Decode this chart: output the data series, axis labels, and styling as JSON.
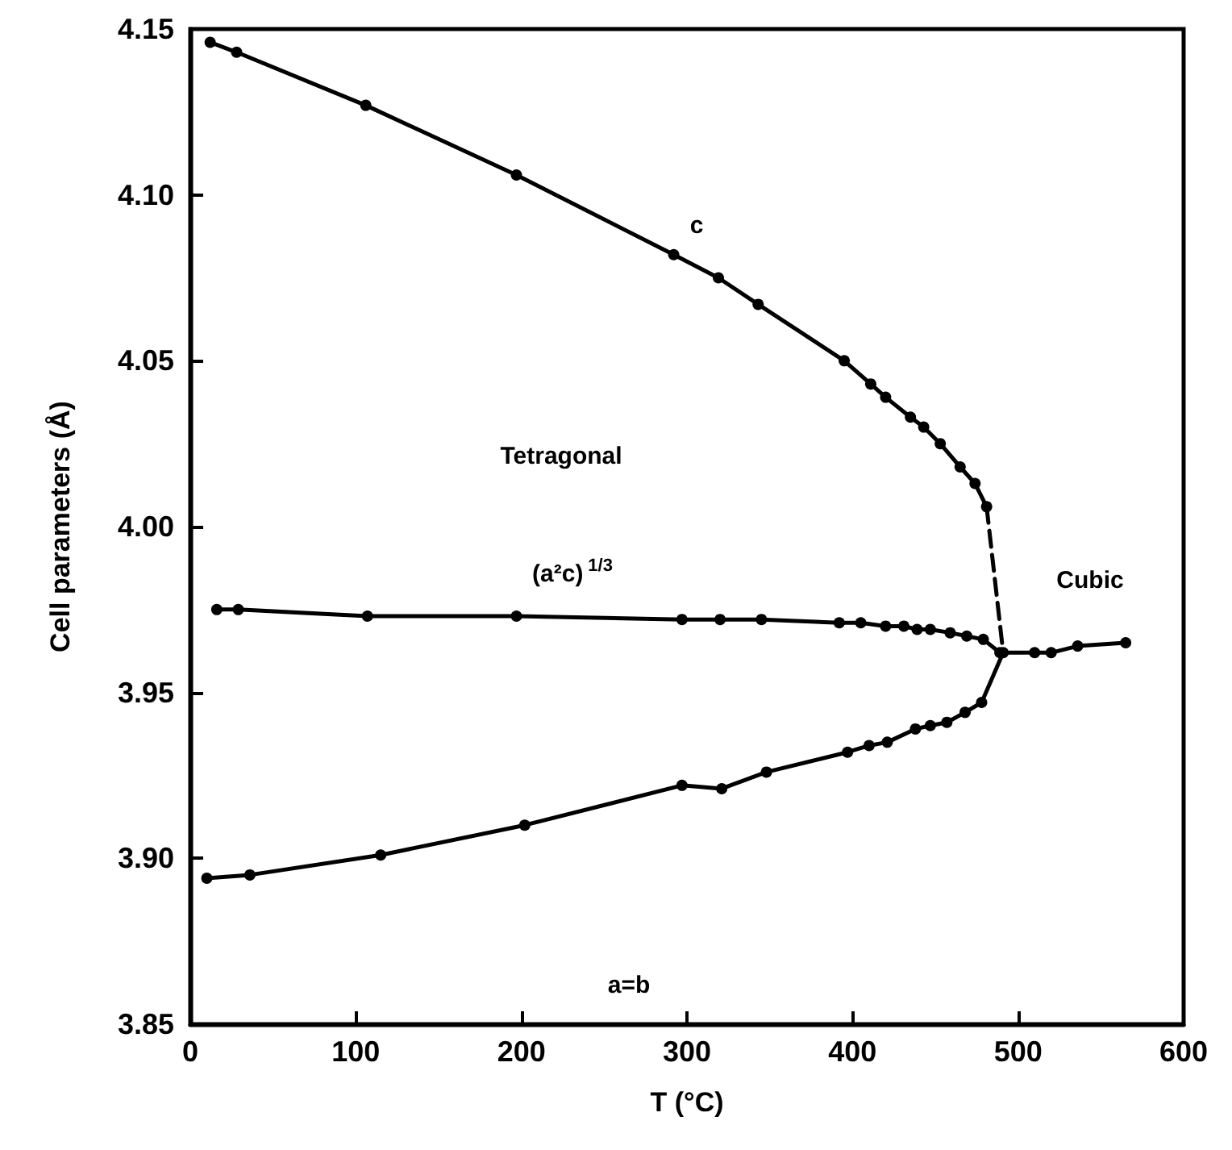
{
  "chart_data": {
    "type": "line",
    "xlabel": "T (°C)",
    "ylabel": "Cell parameters (Å)",
    "xlim": [
      0,
      600
    ],
    "xticks": [
      0,
      100,
      200,
      300,
      400,
      500,
      600
    ],
    "ylim": [
      3.85,
      4.15
    ],
    "yticks": [
      {
        "value": 3.85,
        "label": "3.85"
      },
      {
        "value": 3.9,
        "label": "3.90"
      },
      {
        "value": 3.95,
        "label": "3.95"
      },
      {
        "value": 4.0,
        "label": "4.00"
      },
      {
        "value": 4.05,
        "label": "4.05"
      },
      {
        "value": 4.1,
        "label": "4.10"
      },
      {
        "value": 4.15,
        "label": "4.15"
      }
    ],
    "grid": false,
    "marker": "circle",
    "line_style": "solid",
    "series": [
      {
        "color": "#000000",
        "x": [
          12,
          28,
          106,
          197,
          292,
          319,
          343,
          395,
          411,
          420,
          435,
          443,
          453,
          465,
          474,
          481
        ],
        "values": [
          4.146,
          4.143,
          4.127,
          4.106,
          4.082,
          4.075,
          4.067,
          4.05,
          4.043,
          4.039,
          4.033,
          4.03,
          4.025,
          4.018,
          4.013,
          4.006
        ]
      },
      {
        "color": "#000000",
        "x": [
          16,
          29,
          107,
          197,
          297,
          320,
          345,
          392,
          405,
          420,
          431,
          439,
          447,
          459,
          469,
          479,
          489,
          510,
          520,
          536,
          565
        ],
        "values": [
          3.975,
          3.975,
          3.973,
          3.973,
          3.972,
          3.972,
          3.972,
          3.971,
          3.971,
          3.97,
          3.97,
          3.969,
          3.969,
          3.968,
          3.967,
          3.966,
          3.962,
          3.962,
          3.962,
          3.964,
          3.965
        ]
      },
      {
        "color": "#000000",
        "x": [
          10,
          36,
          115,
          202,
          297,
          321,
          348,
          397,
          410,
          421,
          438,
          447,
          457,
          468,
          478,
          491
        ],
        "values": [
          3.894,
          3.895,
          3.901,
          3.91,
          3.922,
          3.921,
          3.926,
          3.932,
          3.934,
          3.935,
          3.939,
          3.94,
          3.941,
          3.944,
          3.947,
          3.962
        ]
      },
      {
        "color": "#000000",
        "x": [
          481,
          491
        ],
        "values": [
          4.006,
          3.962
        ],
        "line_style": "dashed",
        "marker": "none"
      }
    ],
    "annotations": [
      "c",
      "Tetragonal",
      "(a²c)$^{1/3}$",
      "Cubic",
      "a=b"
    ]
  }
}
